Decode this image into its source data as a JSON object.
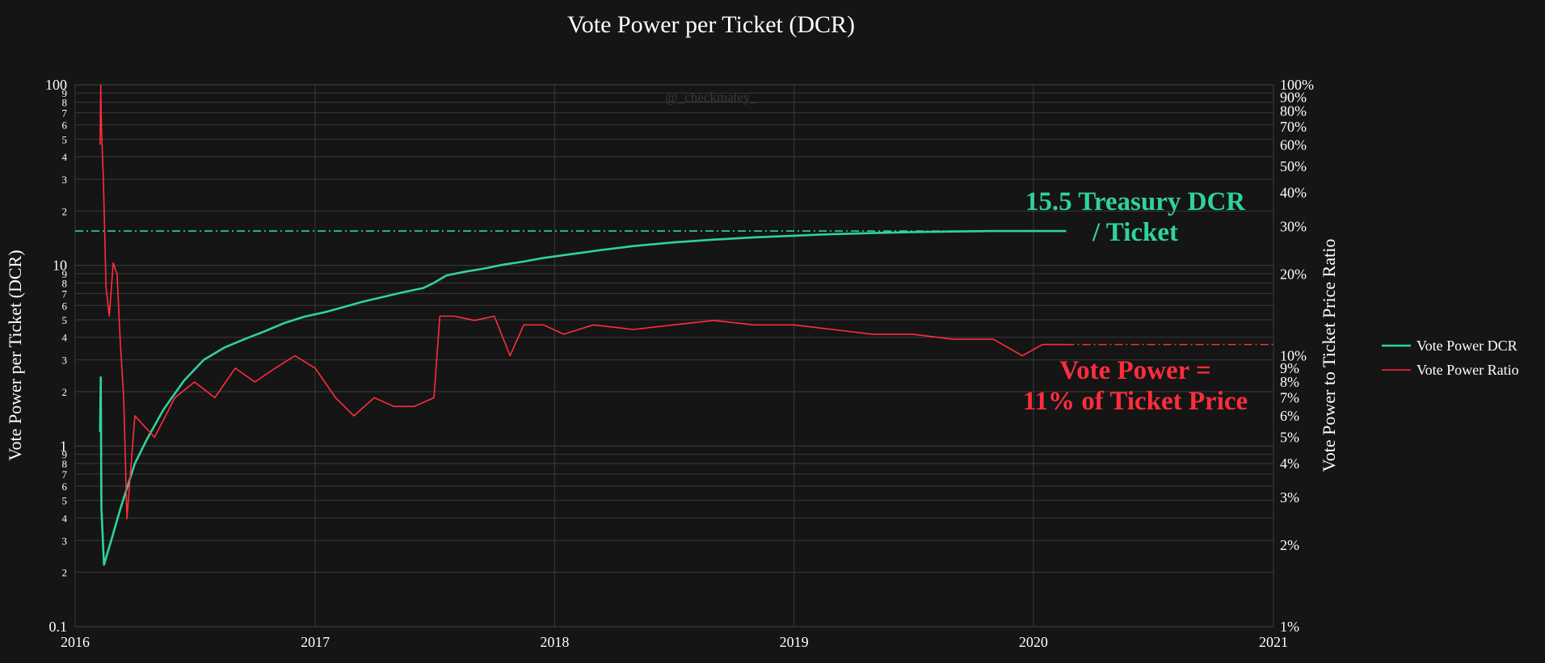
{
  "watermark": "@_checkmatey_",
  "colors": {
    "background": "#151515",
    "grid": "#3a3a3a",
    "text": "#ffffff",
    "dcr_series": "#2fd39a",
    "ratio_series": "#ff2d3c"
  },
  "chart_data": {
    "type": "line",
    "title": "Vote Power per Ticket (DCR)",
    "x_axis": {
      "range": [
        "2016-01-01",
        "2021-01-01"
      ],
      "ticks": [
        "2016",
        "2017",
        "2018",
        "2019",
        "2020",
        "2021"
      ]
    },
    "y_axis_left": {
      "label": "Vote Power per Ticket (DCR)",
      "scale": "log",
      "range": [
        0.1,
        100
      ],
      "major_ticks": [
        {
          "v": 0.1,
          "label": "0.1"
        },
        {
          "v": 1,
          "label": "1"
        },
        {
          "v": 10,
          "label": "10"
        },
        {
          "v": 100,
          "label": "100"
        }
      ],
      "minor_tick_digits": [
        2,
        3,
        4,
        5,
        6,
        7,
        8,
        9
      ]
    },
    "y_axis_right": {
      "label": "Vote Power to Ticket Price Ratio",
      "scale": "log",
      "range": [
        0.01,
        1.0
      ],
      "ticks": [
        {
          "v": 0.01,
          "label": "1%"
        },
        {
          "v": 0.02,
          "label": "2%"
        },
        {
          "v": 0.03,
          "label": "3%"
        },
        {
          "v": 0.04,
          "label": "4%"
        },
        {
          "v": 0.05,
          "label": "5%"
        },
        {
          "v": 0.06,
          "label": "6%"
        },
        {
          "v": 0.07,
          "label": "7%"
        },
        {
          "v": 0.08,
          "label": "8%"
        },
        {
          "v": 0.09,
          "label": "9%"
        },
        {
          "v": 0.1,
          "label": "10%"
        },
        {
          "v": 0.2,
          "label": "20%"
        },
        {
          "v": 0.3,
          "label": "30%"
        },
        {
          "v": 0.4,
          "label": "40%"
        },
        {
          "v": 0.5,
          "label": "50%"
        },
        {
          "v": 0.6,
          "label": "60%"
        },
        {
          "v": 0.7,
          "label": "70%"
        },
        {
          "v": 0.8,
          "label": "80%"
        },
        {
          "v": 0.9,
          "label": "90%"
        },
        {
          "v": 1.0,
          "label": "100%"
        }
      ]
    },
    "legend": {
      "placement": "right",
      "entries": [
        "Vote Power DCR",
        "Vote Power Ratio"
      ]
    },
    "grid": true,
    "series": [
      {
        "name": "Vote Power DCR",
        "axis": "left",
        "color": "#2fd39a",
        "points": [
          [
            "2016-02-08",
            1.2
          ],
          [
            "2016-02-09",
            2.4
          ],
          [
            "2016-02-10",
            0.45
          ],
          [
            "2016-02-14",
            0.22
          ],
          [
            "2016-02-25",
            0.3
          ],
          [
            "2016-03-10",
            0.45
          ],
          [
            "2016-04-01",
            0.8
          ],
          [
            "2016-04-20",
            1.1
          ],
          [
            "2016-05-15",
            1.6
          ],
          [
            "2016-06-15",
            2.3
          ],
          [
            "2016-07-15",
            3.0
          ],
          [
            "2016-08-15",
            3.5
          ],
          [
            "2016-09-15",
            3.9
          ],
          [
            "2016-10-15",
            4.3
          ],
          [
            "2016-11-15",
            4.8
          ],
          [
            "2016-12-15",
            5.2
          ],
          [
            "2017-01-15",
            5.5
          ],
          [
            "2017-02-15",
            5.9
          ],
          [
            "2017-03-15",
            6.3
          ],
          [
            "2017-04-15",
            6.7
          ],
          [
            "2017-05-15",
            7.1
          ],
          [
            "2017-06-15",
            7.5
          ],
          [
            "2017-07-01",
            8.0
          ],
          [
            "2017-07-20",
            8.8
          ],
          [
            "2017-08-15",
            9.2
          ],
          [
            "2017-09-15",
            9.6
          ],
          [
            "2017-10-15",
            10.1
          ],
          [
            "2017-11-15",
            10.5
          ],
          [
            "2017-12-15",
            11.0
          ],
          [
            "2018-01-15",
            11.4
          ],
          [
            "2018-02-15",
            11.8
          ],
          [
            "2018-03-15",
            12.2
          ],
          [
            "2018-05-01",
            12.8
          ],
          [
            "2018-07-01",
            13.4
          ],
          [
            "2018-09-01",
            13.9
          ],
          [
            "2018-11-01",
            14.3
          ],
          [
            "2019-01-01",
            14.6
          ],
          [
            "2019-03-01",
            14.9
          ],
          [
            "2019-05-01",
            15.1
          ],
          [
            "2019-07-01",
            15.3
          ],
          [
            "2019-09-01",
            15.4
          ],
          [
            "2019-11-01",
            15.5
          ],
          [
            "2020-01-01",
            15.5
          ],
          [
            "2020-02-20",
            15.5
          ]
        ]
      },
      {
        "name": "Vote Power Ratio",
        "axis": "right",
        "color": "#ff2d3c",
        "points": [
          [
            "2016-02-08",
            0.6
          ],
          [
            "2016-02-09",
            1.0
          ],
          [
            "2016-02-10",
            0.7
          ],
          [
            "2016-02-13",
            0.45
          ],
          [
            "2016-02-17",
            0.18
          ],
          [
            "2016-02-22",
            0.14
          ],
          [
            "2016-02-28",
            0.22
          ],
          [
            "2016-03-05",
            0.2
          ],
          [
            "2016-03-10",
            0.11
          ],
          [
            "2016-03-15",
            0.07
          ],
          [
            "2016-03-20",
            0.025
          ],
          [
            "2016-04-01",
            0.06
          ],
          [
            "2016-05-01",
            0.05
          ],
          [
            "2016-06-01",
            0.07
          ],
          [
            "2016-07-01",
            0.08
          ],
          [
            "2016-08-01",
            0.07
          ],
          [
            "2016-09-01",
            0.09
          ],
          [
            "2016-10-01",
            0.08
          ],
          [
            "2016-11-01",
            0.09
          ],
          [
            "2016-12-01",
            0.1
          ],
          [
            "2017-01-01",
            0.09
          ],
          [
            "2017-02-01",
            0.07
          ],
          [
            "2017-03-01",
            0.06
          ],
          [
            "2017-04-01",
            0.07
          ],
          [
            "2017-05-01",
            0.065
          ],
          [
            "2017-06-01",
            0.065
          ],
          [
            "2017-07-01",
            0.07
          ],
          [
            "2017-07-10",
            0.14
          ],
          [
            "2017-08-01",
            0.14
          ],
          [
            "2017-09-01",
            0.135
          ],
          [
            "2017-10-01",
            0.14
          ],
          [
            "2017-10-25",
            0.1
          ],
          [
            "2017-11-15",
            0.13
          ],
          [
            "2017-12-15",
            0.13
          ],
          [
            "2018-01-15",
            0.12
          ],
          [
            "2018-03-01",
            0.13
          ],
          [
            "2018-05-01",
            0.125
          ],
          [
            "2018-07-01",
            0.13
          ],
          [
            "2018-09-01",
            0.135
          ],
          [
            "2018-11-01",
            0.13
          ],
          [
            "2019-01-01",
            0.13
          ],
          [
            "2019-03-01",
            0.125
          ],
          [
            "2019-05-01",
            0.12
          ],
          [
            "2019-07-01",
            0.12
          ],
          [
            "2019-09-01",
            0.115
          ],
          [
            "2019-11-01",
            0.115
          ],
          [
            "2019-12-15",
            0.1
          ],
          [
            "2020-01-15",
            0.11
          ],
          [
            "2020-02-20",
            0.11
          ]
        ]
      }
    ],
    "reference_lines": [
      {
        "axis": "left",
        "value": 15.5,
        "from": "2016-01-01",
        "to": "2020-02-20",
        "color": "#2fd39a",
        "style": "dash-dot"
      },
      {
        "axis": "right",
        "value": 0.11,
        "from": "2020-02-20",
        "to": "2021-01-01",
        "color": "#ff2d3c",
        "style": "dash-dot"
      }
    ],
    "annotations": [
      {
        "lines": [
          "15.5 Treasury DCR",
          "/ Ticket"
        ],
        "color": "#2fd39a"
      },
      {
        "lines": [
          "Vote Power =",
          "11% of Ticket Price"
        ],
        "color": "#ff2d3c"
      }
    ]
  }
}
